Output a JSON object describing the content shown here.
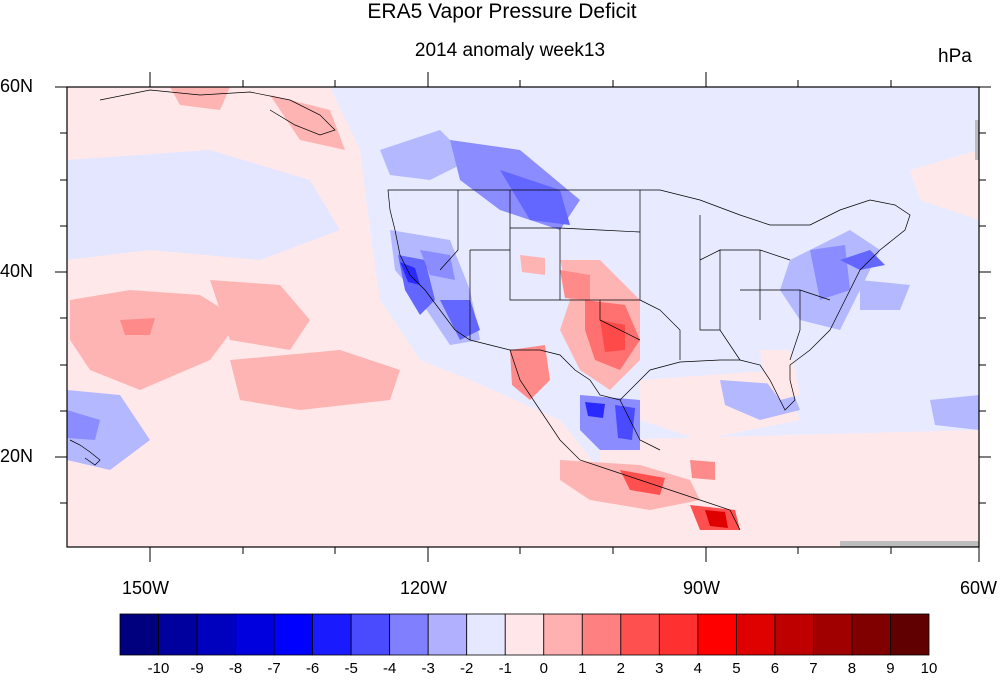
{
  "title": "ERA5 Vapor Pressure Deficit",
  "subtitle": "2014 anomaly week13",
  "units": "hPa",
  "lat_labels": [
    "60N",
    "40N",
    "20N"
  ],
  "lon_labels": [
    "150W",
    "120W",
    "90W",
    "60W"
  ],
  "colorbar": {
    "labels": [
      "-10",
      "-9",
      "-8",
      "-7",
      "-6",
      "-5",
      "-4",
      "-3",
      "-2",
      "-1",
      "0",
      "1",
      "2",
      "3",
      "4",
      "5",
      "6",
      "7",
      "8",
      "9",
      "10"
    ],
    "colors": [
      "#00007f",
      "#00009f",
      "#0000bf",
      "#0000df",
      "#0000ff",
      "#1a1aff",
      "#4a4aff",
      "#8080ff",
      "#b0b0ff",
      "#e6e8ff",
      "#ffe6e8",
      "#ffb0b0",
      "#ff8080",
      "#ff5050",
      "#ff3030",
      "#ff0000",
      "#df0000",
      "#bf0000",
      "#a00000",
      "#800000",
      "#600000"
    ]
  }
}
